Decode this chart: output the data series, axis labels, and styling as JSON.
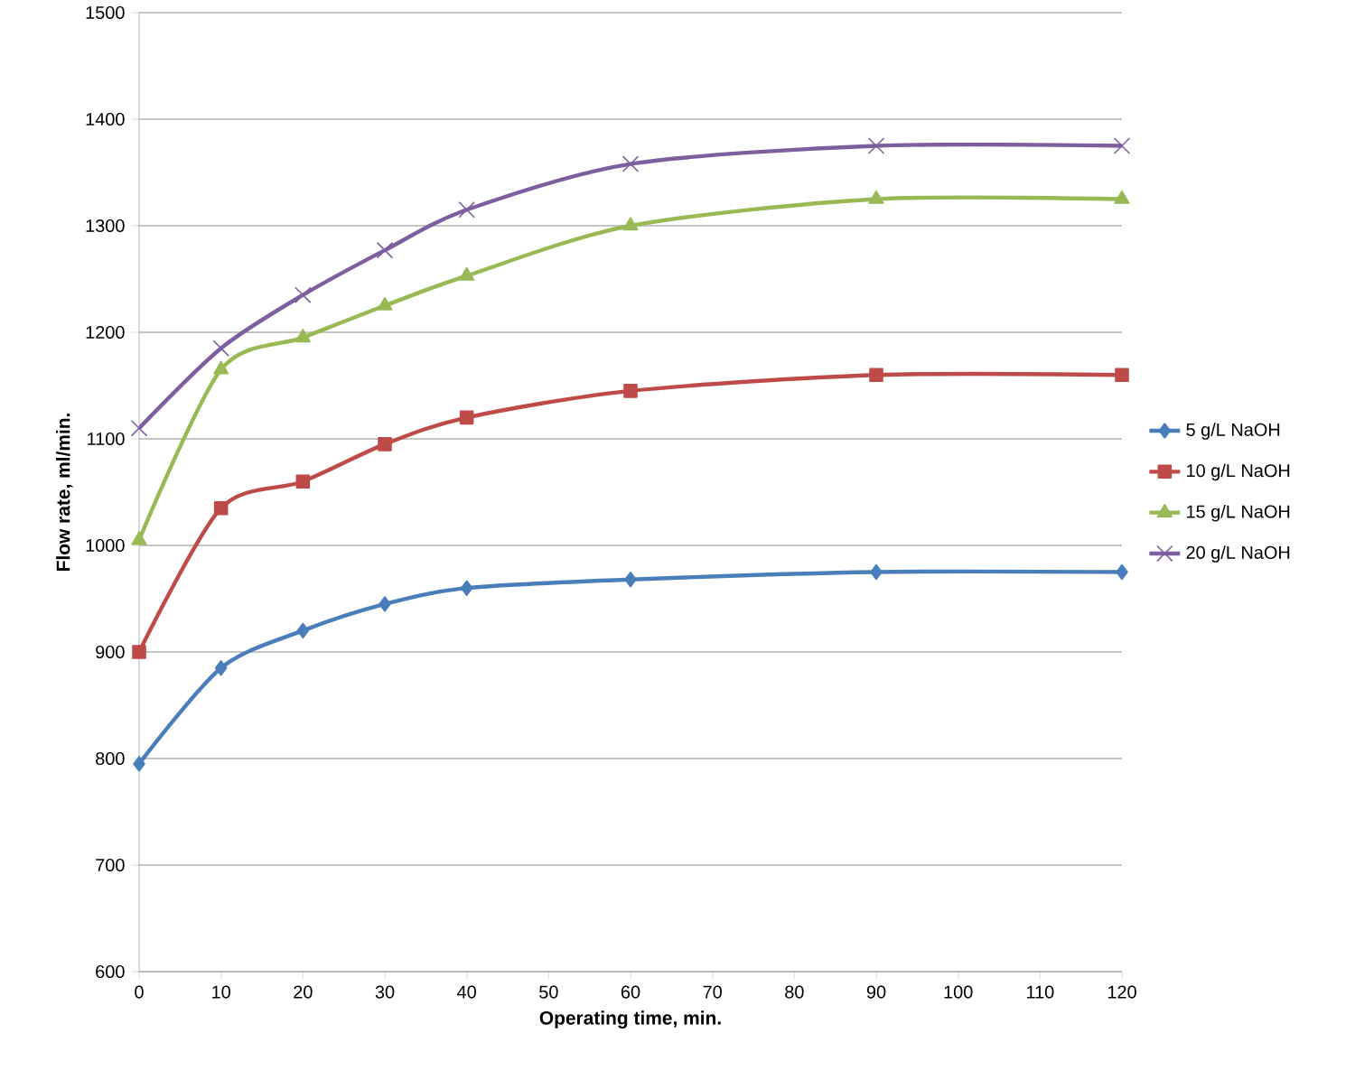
{
  "chart_data": {
    "type": "line",
    "xlabel": "Operating time, min.",
    "ylabel": "Flow rate, ml/min.",
    "x": [
      0,
      10,
      20,
      30,
      40,
      60,
      90,
      120
    ],
    "xlim": [
      0,
      120
    ],
    "xticks": [
      0,
      10,
      20,
      30,
      40,
      50,
      60,
      70,
      80,
      90,
      100,
      110,
      120
    ],
    "ylim": [
      600,
      1500
    ],
    "yticks": [
      600,
      700,
      800,
      900,
      1000,
      1100,
      1200,
      1300,
      1400,
      1500
    ],
    "grid": "y",
    "legend": "right",
    "series": [
      {
        "name": "5 g/L NaOH",
        "color": "#4a7ebb",
        "marker": "diamond",
        "values": [
          795,
          885,
          920,
          945,
          960,
          968,
          975,
          975
        ]
      },
      {
        "name": "10 g/L NaOH",
        "color": "#be4b48",
        "marker": "square",
        "values": [
          900,
          1035,
          1060,
          1095,
          1120,
          1145,
          1160,
          1160
        ]
      },
      {
        "name": "15 g/L NaOH",
        "color": "#98b954",
        "marker": "triangle",
        "values": [
          1005,
          1165,
          1195,
          1225,
          1253,
          1300,
          1325,
          1325
        ]
      },
      {
        "name": "20 g/L NaOH",
        "color": "#7d5fa0",
        "marker": "cross",
        "values": [
          1110,
          1185,
          1235,
          1277,
          1315,
          1358,
          1375,
          1375
        ]
      }
    ]
  }
}
